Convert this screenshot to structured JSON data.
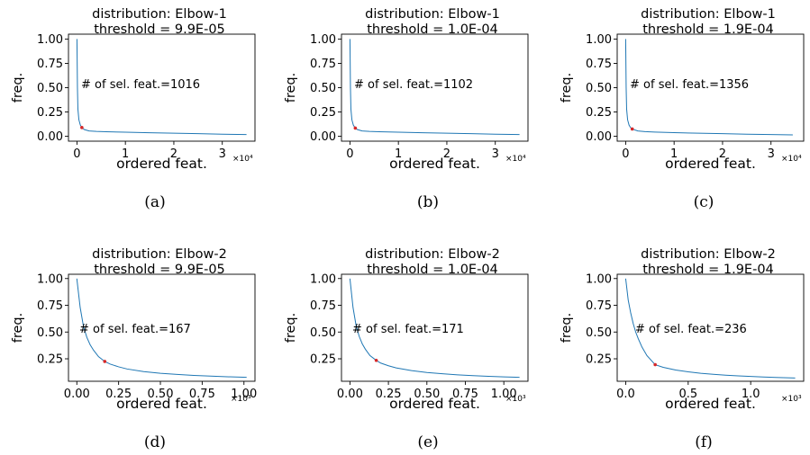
{
  "chart_data": [
    {
      "type": "line",
      "caption": "(a)",
      "title": "distribution: Elbow-1",
      "subtitle": "threshold = 9.9E-05",
      "xlabel": "ordered feat.",
      "ylabel": "freq.",
      "x_multiplier": "×10⁴",
      "x_ticks": [
        "0",
        "1",
        "2",
        "3"
      ],
      "x_tick_values": [
        0,
        10000,
        20000,
        30000
      ],
      "y_ticks": [
        "0.00",
        "0.25",
        "0.50",
        "0.75",
        "1.00"
      ],
      "y_tick_values": [
        0,
        0.25,
        0.5,
        0.75,
        1.0
      ],
      "xlim": [
        -1750,
        36750
      ],
      "ylim": [
        -0.05,
        1.05
      ],
      "annotation": "# of sel. feat.=1016",
      "series": [
        {
          "x": [
            0,
            100,
            200,
            400,
            700,
            1016,
            1500,
            2500,
            4000,
            6000,
            10000,
            15000,
            20000,
            25000,
            30000,
            35000
          ],
          "y": [
            1.0,
            0.5,
            0.28,
            0.17,
            0.115,
            0.09,
            0.07,
            0.055,
            0.05,
            0.047,
            0.042,
            0.037,
            0.032,
            0.027,
            0.022,
            0.018
          ]
        }
      ],
      "selected_point": {
        "x": 1016,
        "y": 0.09
      }
    },
    {
      "type": "line",
      "caption": "(b)",
      "title": "distribution: Elbow-1",
      "subtitle": "threshold = 1.0E-04",
      "xlabel": "ordered feat.",
      "ylabel": "freq.",
      "x_multiplier": "×10⁴",
      "x_ticks": [
        "0",
        "1",
        "2",
        "3"
      ],
      "x_tick_values": [
        0,
        10000,
        20000,
        30000
      ],
      "y_ticks": [
        "0.00",
        "0.25",
        "0.50",
        "0.75",
        "1.00"
      ],
      "y_tick_values": [
        0,
        0.25,
        0.5,
        0.75,
        1.0
      ],
      "xlim": [
        -1750,
        36750
      ],
      "ylim": [
        -0.05,
        1.05
      ],
      "annotation": "# of sel. feat.=1102",
      "series": [
        {
          "x": [
            0,
            100,
            200,
            400,
            700,
            1102,
            1500,
            2500,
            4000,
            6000,
            10000,
            15000,
            20000,
            25000,
            30000,
            35000
          ],
          "y": [
            1.0,
            0.5,
            0.28,
            0.17,
            0.115,
            0.085,
            0.07,
            0.055,
            0.05,
            0.047,
            0.042,
            0.037,
            0.032,
            0.027,
            0.022,
            0.018
          ]
        }
      ],
      "selected_point": {
        "x": 1102,
        "y": 0.085
      }
    },
    {
      "type": "line",
      "caption": "(c)",
      "title": "distribution: Elbow-1",
      "subtitle": "threshold = 1.9E-04",
      "xlabel": "ordered feat.",
      "ylabel": "freq.",
      "x_multiplier": "×10⁴",
      "x_ticks": [
        "0",
        "1",
        "2",
        "3"
      ],
      "x_tick_values": [
        0,
        10000,
        20000,
        30000
      ],
      "y_ticks": [
        "0.00",
        "0.25",
        "0.50",
        "0.75",
        "1.00"
      ],
      "y_tick_values": [
        0,
        0.25,
        0.5,
        0.75,
        1.0
      ],
      "xlim": [
        -1750,
        36750
      ],
      "ylim": [
        -0.05,
        1.05
      ],
      "annotation": "# of sel. feat.=1356",
      "series": [
        {
          "x": [
            0,
            100,
            200,
            400,
            700,
            1000,
            1356,
            2500,
            4000,
            6000,
            10000,
            15000,
            20000,
            25000,
            30000,
            34500
          ],
          "y": [
            1.0,
            0.5,
            0.28,
            0.17,
            0.115,
            0.09,
            0.075,
            0.055,
            0.048,
            0.044,
            0.038,
            0.032,
            0.027,
            0.022,
            0.018,
            0.015
          ]
        }
      ],
      "selected_point": {
        "x": 1356,
        "y": 0.075
      }
    },
    {
      "type": "line",
      "caption": "(d)",
      "title": "distribution: Elbow-2",
      "subtitle": "threshold = 9.9E-05",
      "xlabel": "ordered feat.",
      "ylabel": "freq.",
      "x_multiplier": "×10³",
      "x_ticks": [
        "0.00",
        "0.25",
        "0.50",
        "0.75",
        "1.00"
      ],
      "x_tick_values": [
        0,
        250,
        500,
        750,
        1000
      ],
      "y_ticks": [
        "0.25",
        "0.50",
        "0.75",
        "1.00"
      ],
      "y_tick_values": [
        0.25,
        0.5,
        0.75,
        1.0
      ],
      "xlim": [
        -50,
        1066
      ],
      "ylim": [
        0.04,
        1.04
      ],
      "annotation": "# of sel. feat.=167",
      "series": [
        {
          "x": [
            0,
            20,
            40,
            60,
            80,
            100,
            130,
            167,
            200,
            250,
            300,
            400,
            500,
            600,
            700,
            800,
            900,
            1016
          ],
          "y": [
            1.0,
            0.73,
            0.55,
            0.45,
            0.38,
            0.33,
            0.27,
            0.225,
            0.2,
            0.175,
            0.155,
            0.13,
            0.115,
            0.104,
            0.095,
            0.088,
            0.082,
            0.077
          ]
        }
      ],
      "selected_point": {
        "x": 167,
        "y": 0.225
      }
    },
    {
      "type": "line",
      "caption": "(e)",
      "title": "distribution: Elbow-2",
      "subtitle": "threshold = 1.0E-04",
      "xlabel": "ordered feat.",
      "ylabel": "freq.",
      "x_multiplier": "×10³",
      "x_ticks": [
        "0.00",
        "0.25",
        "0.50",
        "0.75",
        "1.00"
      ],
      "x_tick_values": [
        0,
        250,
        500,
        750,
        1000
      ],
      "y_ticks": [
        "0.25",
        "0.50",
        "0.75",
        "1.00"
      ],
      "y_tick_values": [
        0.25,
        0.5,
        0.75,
        1.0
      ],
      "xlim": [
        -55,
        1157
      ],
      "ylim": [
        0.04,
        1.04
      ],
      "annotation": "# of sel. feat.=171",
      "series": [
        {
          "x": [
            0,
            20,
            40,
            60,
            80,
            100,
            130,
            171,
            200,
            250,
            300,
            400,
            500,
            600,
            700,
            800,
            900,
            1000,
            1102
          ],
          "y": [
            1.0,
            0.73,
            0.56,
            0.46,
            0.39,
            0.34,
            0.28,
            0.235,
            0.21,
            0.185,
            0.165,
            0.14,
            0.122,
            0.11,
            0.1,
            0.092,
            0.086,
            0.081,
            0.077
          ]
        }
      ],
      "selected_point": {
        "x": 171,
        "y": 0.235
      }
    },
    {
      "type": "line",
      "caption": "(f)",
      "title": "distribution: Elbow-2",
      "subtitle": "threshold = 1.9E-04",
      "xlabel": "ordered feat.",
      "ylabel": "freq.",
      "x_multiplier": "×10³",
      "x_ticks": [
        "0.0",
        "0.5",
        "1.0"
      ],
      "x_tick_values": [
        0,
        500,
        1000
      ],
      "y_ticks": [
        "0.25",
        "0.50",
        "0.75",
        "1.00"
      ],
      "y_tick_values": [
        0.25,
        0.5,
        0.75,
        1.0
      ],
      "xlim": [
        -68,
        1424
      ],
      "ylim": [
        0.04,
        1.04
      ],
      "annotation": "# of sel. feat.=236",
      "series": [
        {
          "x": [
            0,
            20,
            40,
            60,
            80,
            100,
            130,
            170,
            236,
            300,
            400,
            500,
            600,
            700,
            800,
            900,
            1000,
            1100,
            1200,
            1356
          ],
          "y": [
            1.0,
            0.8,
            0.68,
            0.58,
            0.5,
            0.44,
            0.36,
            0.28,
            0.195,
            0.17,
            0.145,
            0.128,
            0.115,
            0.105,
            0.097,
            0.09,
            0.085,
            0.08,
            0.076,
            0.07
          ]
        }
      ],
      "selected_point": {
        "x": 236,
        "y": 0.195
      }
    }
  ]
}
